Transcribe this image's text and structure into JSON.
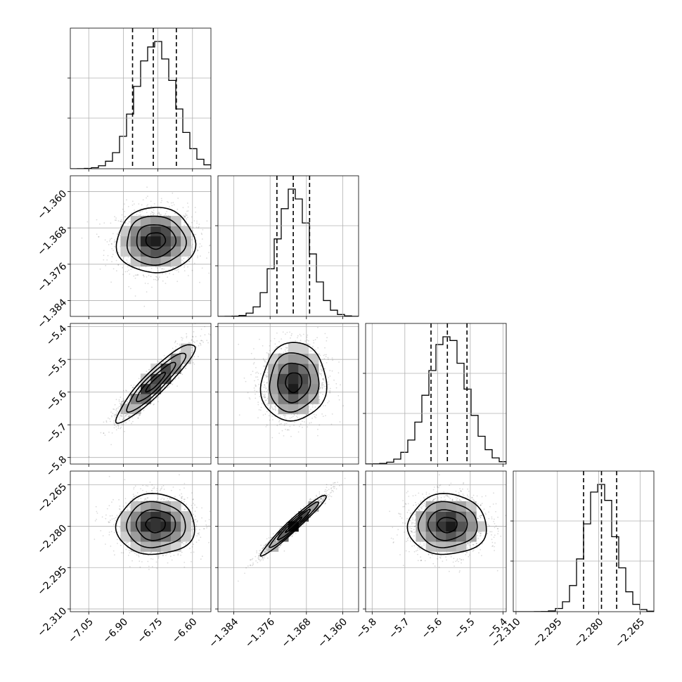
{
  "chart_data": {
    "type": "scatter",
    "subtype": "corner-plot",
    "title": "",
    "parameters": [
      {
        "name": "",
        "ticks": [
          -7.05,
          -6.9,
          -6.75,
          -6.6
        ],
        "tick_labels": [
          "−7.05",
          "−6.90",
          "−6.75",
          "−6.60"
        ],
        "range": [
          -7.13,
          -6.52
        ],
        "mean": -6.76,
        "sd": 0.085,
        "quantiles": [
          -6.86,
          -6.77,
          -6.67
        ]
      },
      {
        "name": "",
        "ticks": [
          -1.384,
          -1.376,
          -1.368,
          -1.36
        ],
        "tick_labels": [
          "−1.384",
          "−1.376",
          "−1.368",
          "−1.360"
        ],
        "range": [
          -1.3875,
          -1.3565
        ],
        "mean": -1.3708,
        "sd": 0.0036,
        "quantiles": [
          -1.3745,
          -1.3709,
          -1.3673
        ]
      },
      {
        "name": "",
        "ticks": [
          -5.8,
          -5.7,
          -5.6,
          -5.5,
          -5.4
        ],
        "tick_labels": [
          "−5.8",
          "−5.7",
          "−5.6",
          "−5.5",
          "−5.4"
        ],
        "range": [
          -5.82,
          -5.39
        ],
        "mean": -5.57,
        "sd": 0.06,
        "quantiles": [
          -5.62,
          -5.57,
          -5.51
        ]
      },
      {
        "name": "",
        "ticks": [
          -2.31,
          -2.295,
          -2.28,
          -2.265
        ],
        "tick_labels": [
          "−2.310",
          "−2.295",
          "−2.280",
          "−2.265"
        ],
        "range": [
          -2.311,
          -2.26
        ],
        "mean": -2.2795,
        "sd": 0.0055,
        "quantiles": [
          -2.2855,
          -2.279,
          -2.2735
        ]
      }
    ],
    "correlations": [
      {
        "pair": [
          0,
          1
        ],
        "rho": 0.0
      },
      {
        "pair": [
          0,
          2
        ],
        "rho": 0.92
      },
      {
        "pair": [
          1,
          2
        ],
        "rho": 0.05
      },
      {
        "pair": [
          0,
          3
        ],
        "rho": 0.0
      },
      {
        "pair": [
          1,
          3
        ],
        "rho": 0.97
      },
      {
        "pair": [
          2,
          3
        ],
        "rho": 0.0
      }
    ],
    "grid": true,
    "legend": "none",
    "colors": {
      "axis": "#000000",
      "grid": "#b0b0b0",
      "points": "#000000",
      "contour": "#000000"
    }
  }
}
